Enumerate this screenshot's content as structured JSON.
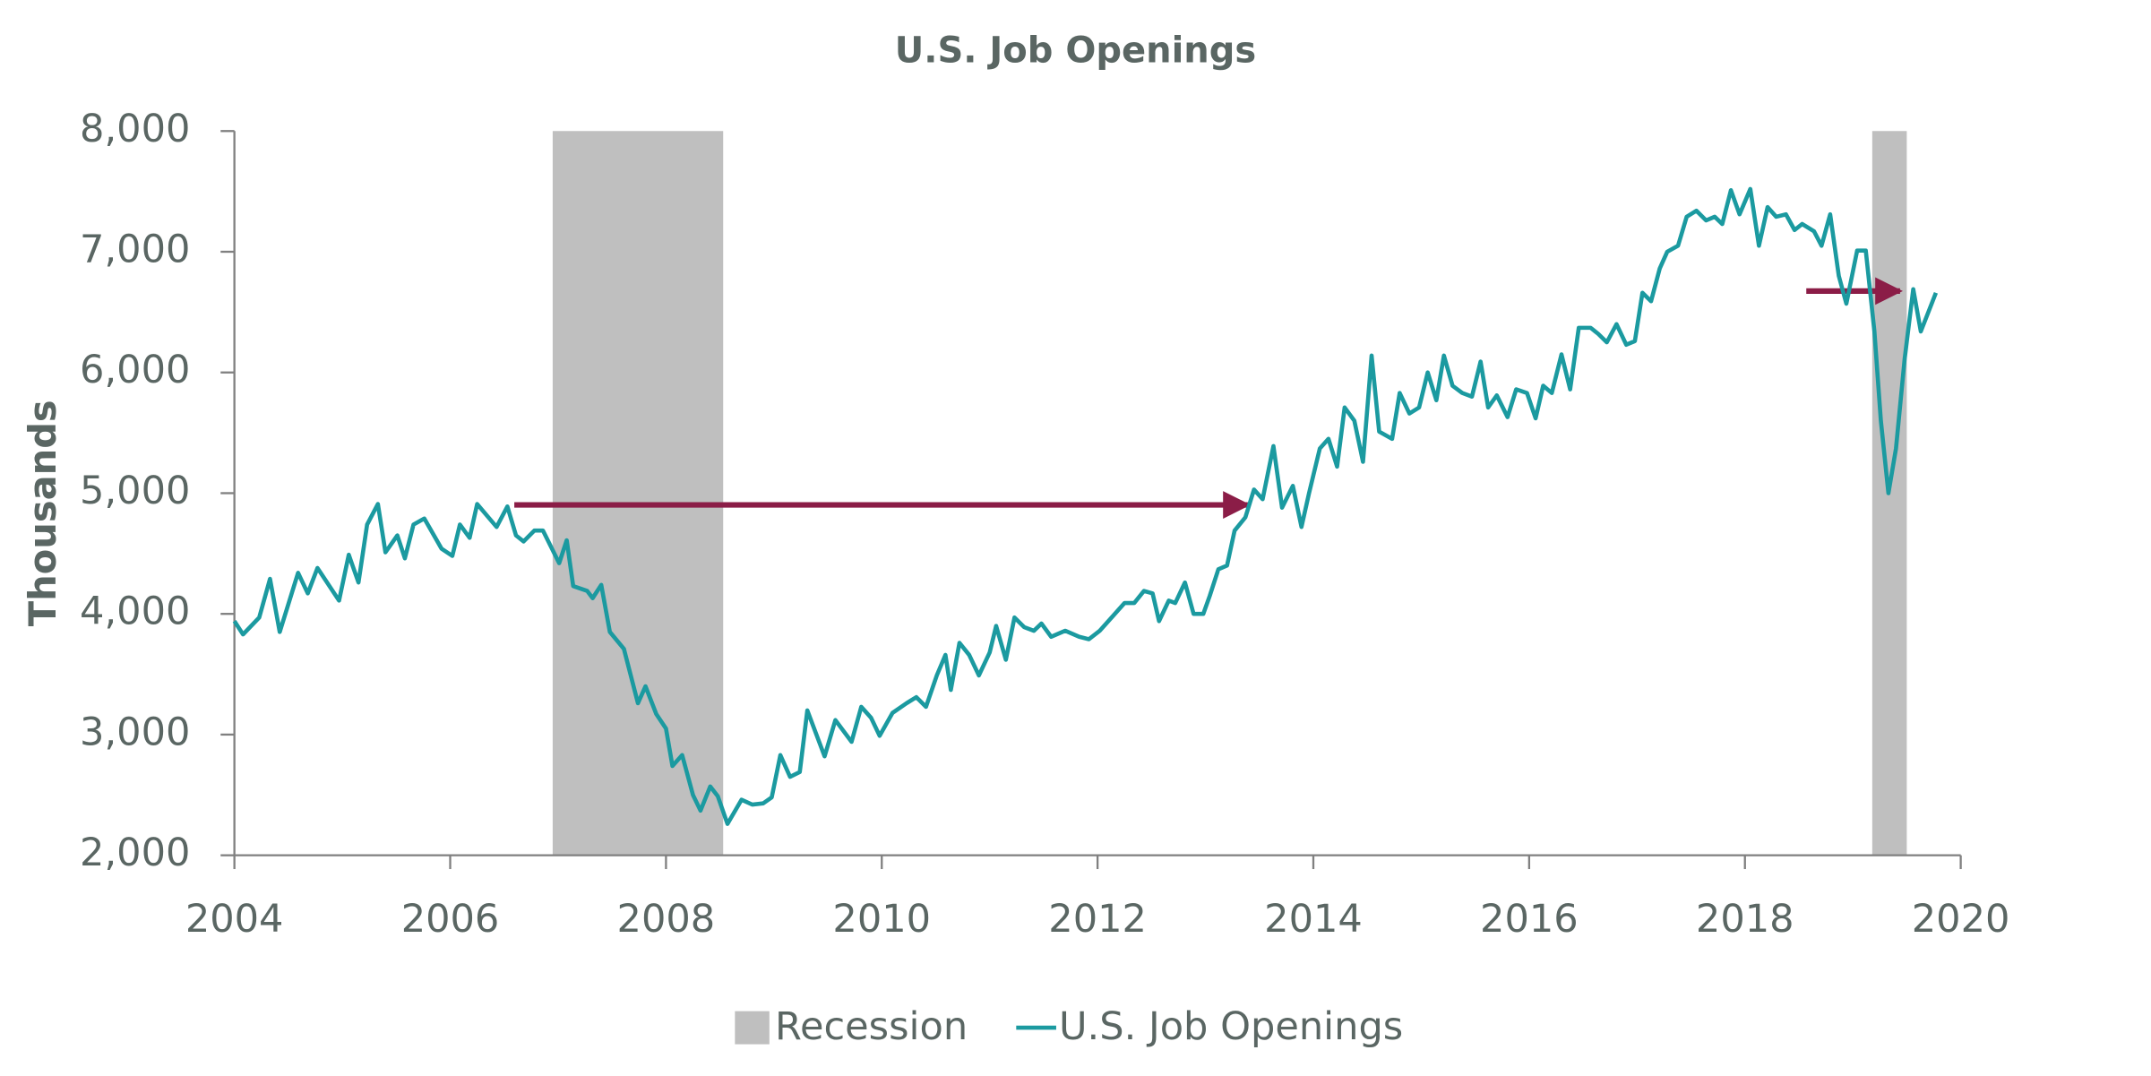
{
  "chart_data": {
    "type": "line",
    "title": "U.S. Job Openings",
    "y_label": "Thousands",
    "xlim": [
      2004,
      2020
    ],
    "ylim": [
      2000,
      8000
    ],
    "xticks": [
      2004,
      2006,
      2008,
      2010,
      2012,
      2014,
      2016,
      2018,
      2020
    ],
    "yticks": [
      {
        "value": 2000,
        "label": "2,000"
      },
      {
        "value": 3000,
        "label": "3,000"
      },
      {
        "value": 4000,
        "label": "4,000"
      },
      {
        "value": 5000,
        "label": "5,000"
      },
      {
        "value": 6000,
        "label": "6,000"
      },
      {
        "value": 7000,
        "label": "7,000"
      },
      {
        "value": 8000,
        "label": "8,000"
      }
    ],
    "recession": {
      "name": "Recession",
      "color": "#bfbfbf",
      "spans": [
        [
          2006.95,
          2008.53
        ],
        [
          2019.18,
          2019.5
        ]
      ]
    },
    "series": [
      {
        "name": "U.S. Job Openings",
        "color": "#1b9aa0",
        "x": [
          2004.0,
          2004.08,
          2004.23,
          2004.33,
          2004.42,
          2004.59,
          2004.68,
          2004.77,
          2004.97,
          2005.06,
          2005.15,
          2005.23,
          2005.33,
          2005.4,
          2005.51,
          2005.58,
          2005.66,
          2005.76,
          2005.92,
          2006.02,
          2006.09,
          2006.18,
          2006.25,
          2006.43,
          2006.53,
          2006.61,
          2006.68,
          2006.78,
          2006.86,
          2007.01,
          2007.08,
          2007.14,
          2007.27,
          2007.32,
          2007.4,
          2007.48,
          2007.61,
          2007.74,
          2007.81,
          2007.91,
          2008.0,
          2008.06,
          2008.15,
          2008.25,
          2008.32,
          2008.41,
          2008.48,
          2008.57,
          2008.7,
          2008.8,
          2008.9,
          2008.98,
          2009.06,
          2009.15,
          2009.24,
          2009.31,
          2009.47,
          2009.57,
          2009.72,
          2009.81,
          2009.9,
          2009.98,
          2010.1,
          2010.23,
          2010.32,
          2010.41,
          2010.51,
          2010.59,
          2010.64,
          2010.72,
          2010.81,
          2010.9,
          2011.0,
          2011.06,
          2011.15,
          2011.23,
          2011.32,
          2011.41,
          2011.48,
          2011.57,
          2011.7,
          2011.83,
          2011.92,
          2012.02,
          2012.15,
          2012.25,
          2012.34,
          2012.43,
          2012.51,
          2012.57,
          2012.66,
          2012.72,
          2012.81,
          2012.89,
          2012.98,
          2013.04,
          2013.12,
          2013.2,
          2013.27,
          2013.37,
          2013.45,
          2013.53,
          2013.63,
          2013.71,
          2013.81,
          2013.89,
          2013.96,
          2014.06,
          2014.14,
          2014.22,
          2014.29,
          2014.38,
          2014.46,
          2014.54,
          2014.61,
          2014.73,
          2014.8,
          2014.89,
          2014.98,
          2015.06,
          2015.14,
          2015.21,
          2015.29,
          2015.38,
          2015.47,
          2015.55,
          2015.62,
          2015.7,
          2015.8,
          2015.88,
          2015.98,
          2016.06,
          2016.13,
          2016.21,
          2016.3,
          2016.38,
          2016.46,
          2016.57,
          2016.64,
          2016.72,
          2016.81,
          2016.9,
          2016.98,
          2017.05,
          2017.13,
          2017.21,
          2017.28,
          2017.38,
          2017.46,
          2017.55,
          2017.64,
          2017.72,
          2017.79,
          2017.87,
          2017.95,
          2018.05,
          2018.13,
          2018.21,
          2018.29,
          2018.38,
          2018.46,
          2018.53,
          2018.64,
          2018.71,
          2018.79,
          2018.87,
          2018.94,
          2019.04,
          2019.12,
          2019.2,
          2019.26,
          2019.33,
          2019.4,
          2019.48,
          2019.56,
          2019.63,
          2019.77
        ],
        "values": [
          3940,
          3830,
          3970,
          4290,
          3850,
          4340,
          4170,
          4380,
          4110,
          4490,
          4260,
          4740,
          4910,
          4510,
          4650,
          4460,
          4740,
          4790,
          4540,
          4480,
          4740,
          4630,
          4910,
          4720,
          4890,
          4650,
          4600,
          4690,
          4690,
          4420,
          4610,
          4230,
          4190,
          4130,
          4240,
          3850,
          3710,
          3260,
          3400,
          3170,
          3050,
          2740,
          2830,
          2500,
          2370,
          2570,
          2490,
          2260,
          2460,
          2420,
          2430,
          2480,
          2830,
          2650,
          2690,
          3200,
          2820,
          3120,
          2940,
          3230,
          3140,
          2990,
          3180,
          3260,
          3310,
          3230,
          3490,
          3660,
          3370,
          3760,
          3660,
          3490,
          3680,
          3900,
          3620,
          3970,
          3890,
          3860,
          3920,
          3810,
          3860,
          3810,
          3790,
          3860,
          3990,
          4090,
          4090,
          4190,
          4170,
          3940,
          4110,
          4090,
          4260,
          4000,
          4000,
          4150,
          4370,
          4400,
          4690,
          4800,
          5030,
          4950,
          5390,
          4880,
          5060,
          4720,
          5000,
          5370,
          5450,
          5220,
          5710,
          5600,
          5260,
          6140,
          5510,
          5450,
          5830,
          5660,
          5710,
          6000,
          5770,
          6140,
          5890,
          5830,
          5800,
          6090,
          5710,
          5810,
          5630,
          5860,
          5830,
          5620,
          5890,
          5830,
          6150,
          5860,
          6370,
          6370,
          6320,
          6250,
          6400,
          6230,
          6260,
          6660,
          6590,
          6860,
          7000,
          7050,
          7290,
          7340,
          7260,
          7290,
          7230,
          7510,
          7310,
          7520,
          7050,
          7370,
          7290,
          7310,
          7180,
          7230,
          7170,
          7050,
          7310,
          6800,
          6570,
          7010,
          7010,
          6340,
          5600,
          5000,
          5370,
          6110,
          6690,
          6340,
          6660
        ]
      }
    ]
  }
}
